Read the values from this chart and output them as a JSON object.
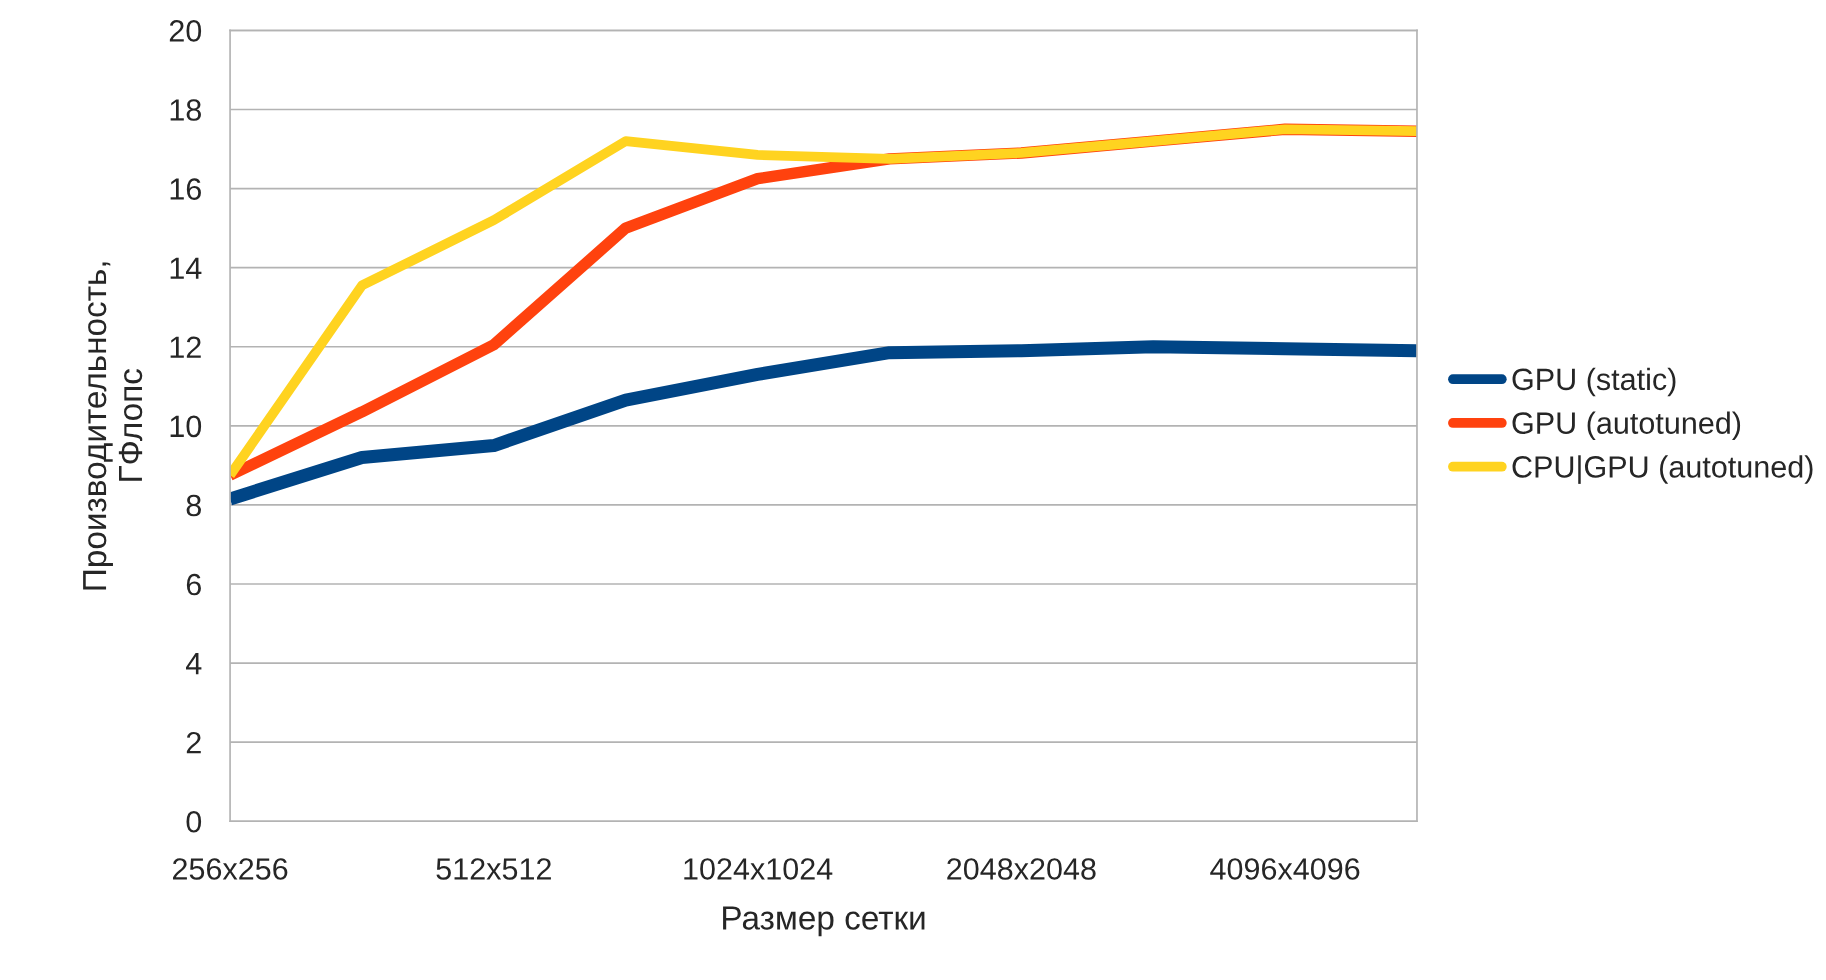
{
  "chart_data": {
    "type": "line",
    "xlabel": "Размер сетки",
    "ylabel": "Производительность,\nГФлопс",
    "categories": [
      "256x256",
      null,
      "512x512",
      null,
      "1024x1024",
      null,
      "2048x2048",
      null,
      "4096x4096",
      null
    ],
    "series": [
      {
        "name": "GPU (static)",
        "color": "#004586",
        "values": [
          8.15,
          9.2,
          9.5,
          10.65,
          11.3,
          11.85,
          11.9,
          12.0,
          11.95,
          11.9
        ]
      },
      {
        "name": "GPU (autotuned)",
        "color": "#ff420e",
        "values": [
          8.75,
          10.35,
          12.05,
          15.0,
          16.25,
          16.75,
          16.9,
          17.2,
          17.5,
          17.45
        ]
      },
      {
        "name": "CPU|GPU (autotuned)",
        "color": "#ffd320",
        "values": [
          8.75,
          13.55,
          15.2,
          17.2,
          16.85,
          16.75,
          16.9,
          17.2,
          17.5,
          17.45
        ]
      }
    ],
    "ylim": [
      0,
      20
    ],
    "yticks": [
      0,
      2,
      4,
      6,
      8,
      10,
      12,
      14,
      16,
      18,
      20
    ],
    "grid": "y",
    "legend": "right",
    "marker": "none",
    "line_style": "solid"
  }
}
